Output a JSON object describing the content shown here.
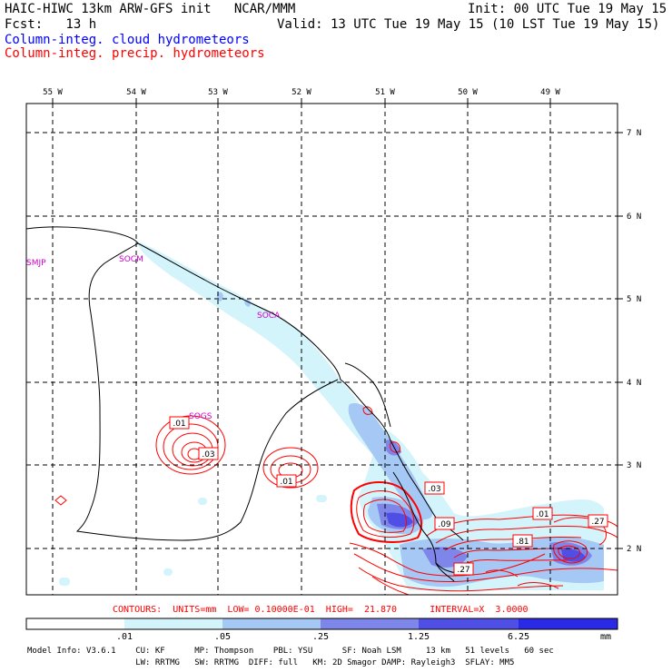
{
  "header": {
    "title": "HAIC-HIWC 13km ARW-GFS init   NCAR/MMM",
    "init": "Init: 00 UTC Tue 19 May 15",
    "fcst": "Fcst:   13 h",
    "valid": "Valid: 13 UTC Tue 19 May 15 (10 LST Tue 19 May 15)",
    "legend_blue": "Column-integ. cloud hydrometeors",
    "legend_red": "Column-integ. precip. hydrometeors"
  },
  "map": {
    "lon_labels": [
      "55 W",
      "54 W",
      "53 W",
      "52 W",
      "51 W",
      "50 W",
      "49 W"
    ],
    "lat_labels": [
      "7 N",
      "6 N",
      "5 N",
      "4 N",
      "3 N",
      "2 N"
    ],
    "stations": [
      "SMJP",
      "SOCM",
      "SOCA",
      "SOGS"
    ],
    "contour_labels": [
      ".01",
      ".03",
      ".01",
      ".03",
      ".09",
      ".01",
      ".27",
      ".81",
      ".27"
    ]
  },
  "contour_info": "CONTOURS:  UNITS=mm  LOW= 0.10000E-01  HIGH=  21.870      INTERVAL=X  3.0000",
  "colorbar": {
    "ticks": [
      ".01",
      ".05",
      ".25",
      "1.25",
      "6.25"
    ],
    "unit": "mm",
    "colors": [
      "#ffffff",
      "#d4f4fb",
      "#a6c8f4",
      "#7f86ea",
      "#4f4fe6",
      "#2a2ae6",
      "#0000ff"
    ]
  },
  "model_info": {
    "line1": "Model Info: V3.6.1    CU: KF      MP: Thompson    PBL: YSU      SF: Noah LSM     13 km   51 levels   60 sec",
    "line2": "                      LW: RRTMG   SW: RRTMG  DIFF: full   KM: 2D Smagor DAMP: Rayleigh3  SFLAY: MM5"
  }
}
